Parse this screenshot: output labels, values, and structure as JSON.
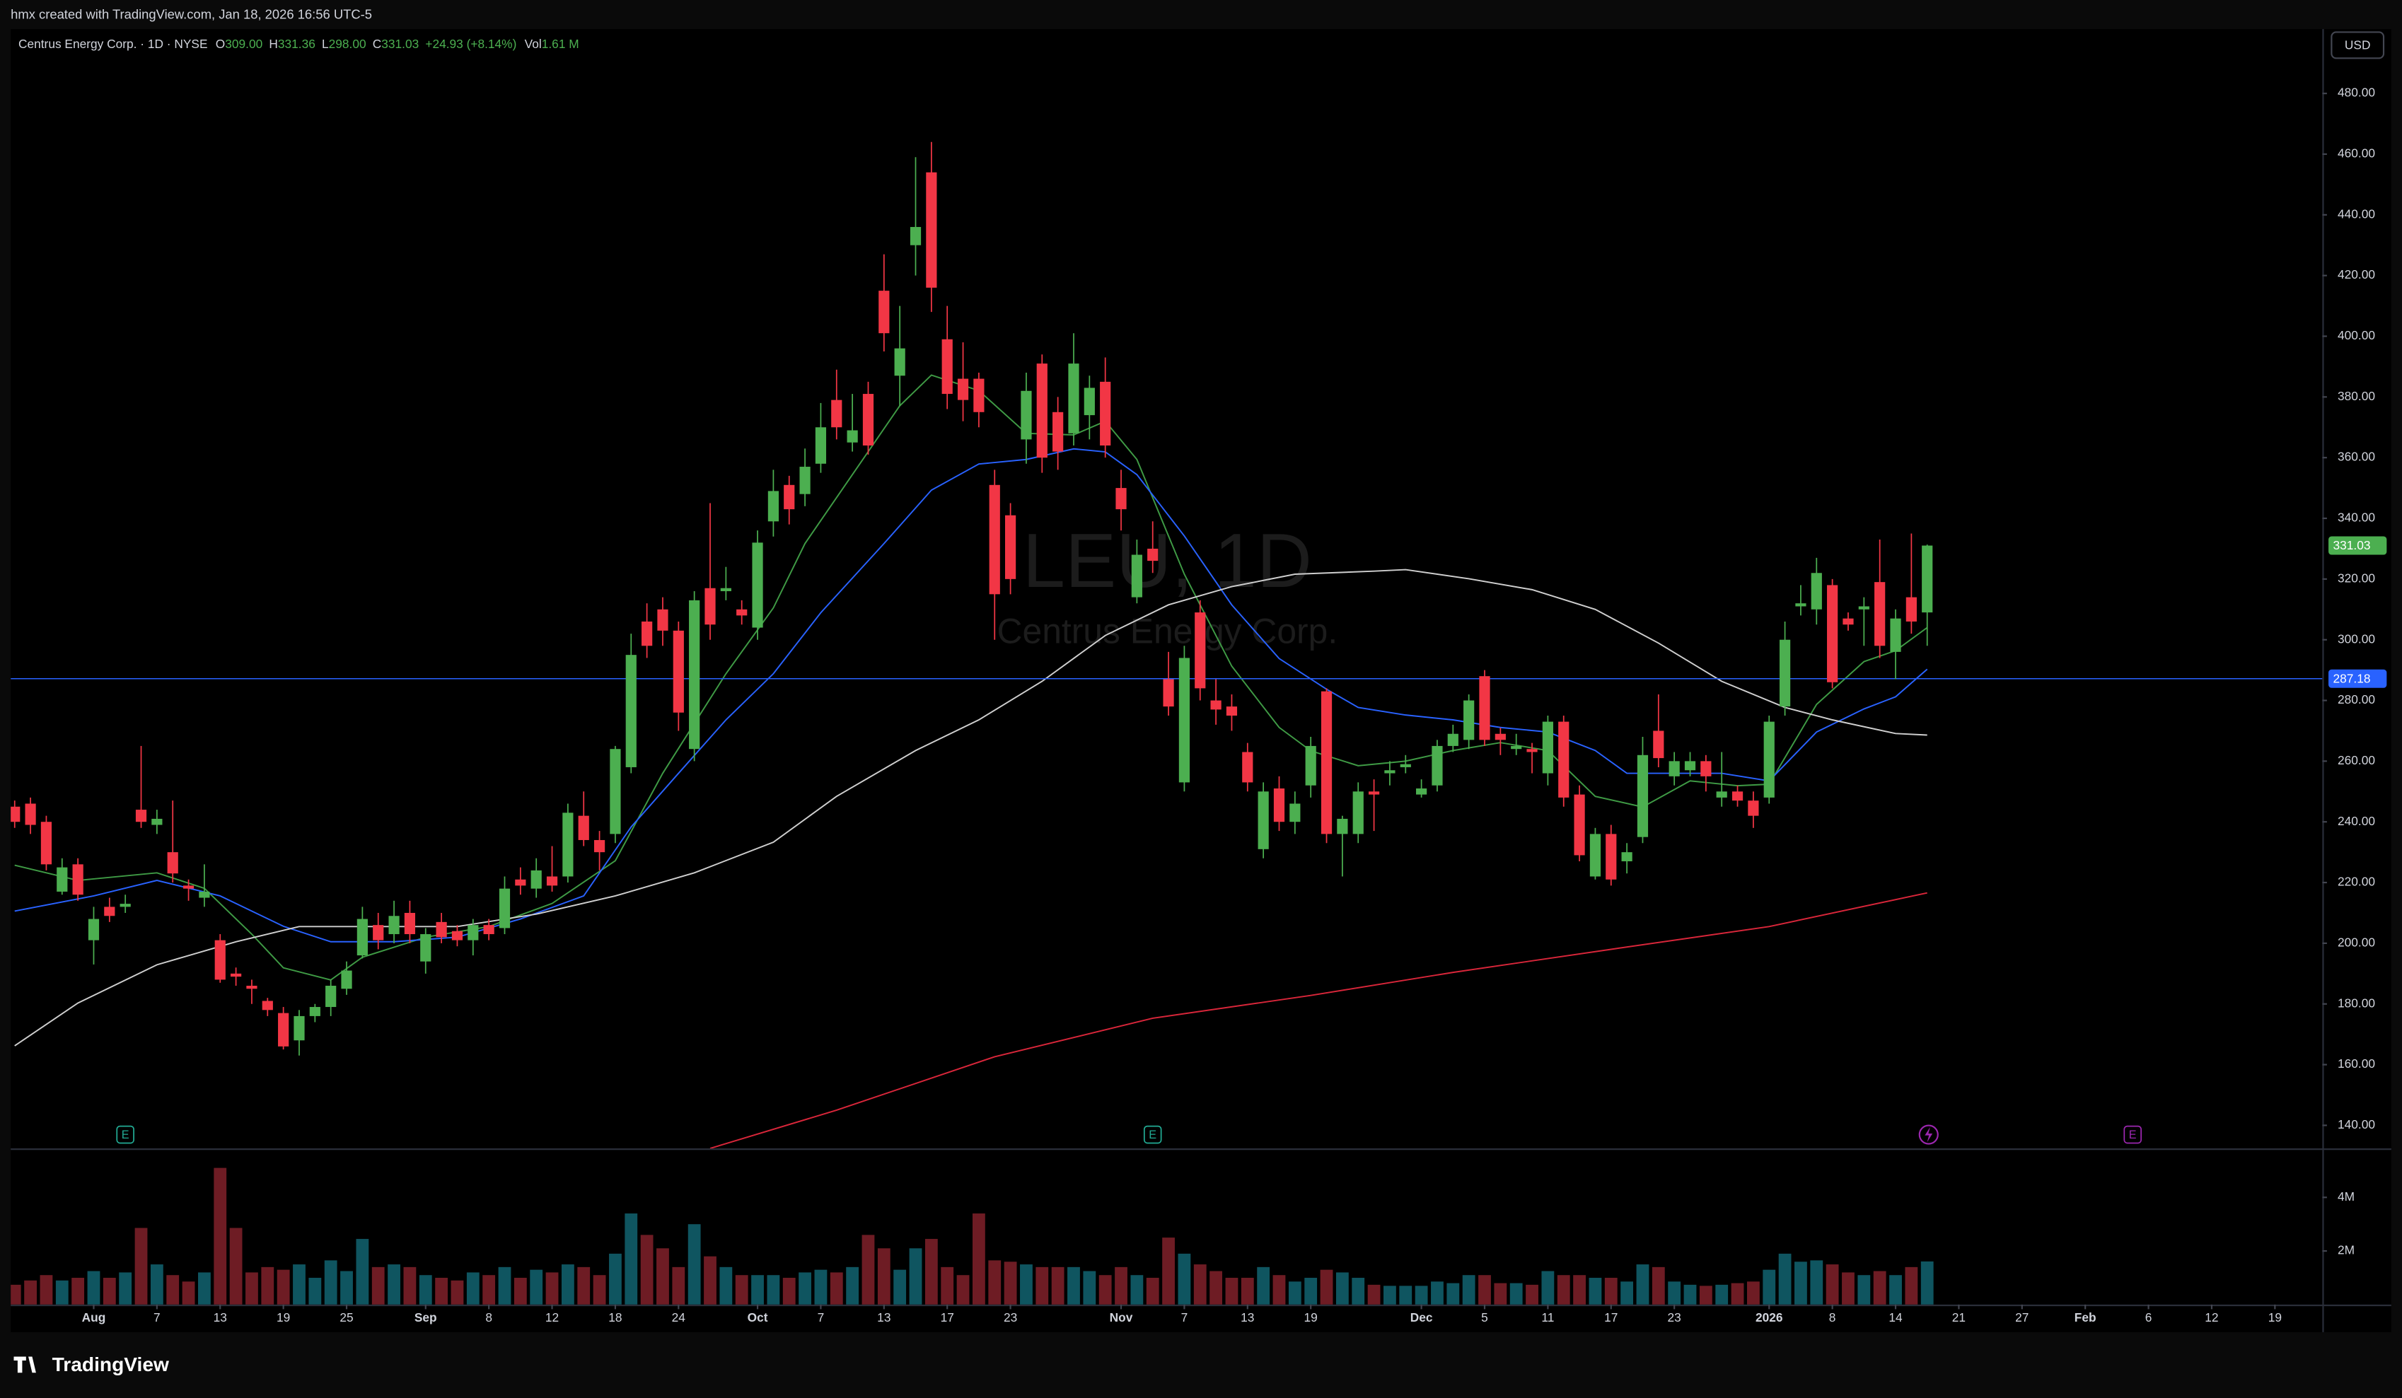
{
  "attribution": "hmx created with TradingView.com, Jan 18, 2026 16:56 UTC-5",
  "header": {
    "symbol": "Centrus Energy Corp. · 1D · NYSE",
    "ohlc": [
      {
        "label": "O",
        "value": "309.00"
      },
      {
        "label": "H",
        "value": "331.36"
      },
      {
        "label": "L",
        "value": "298.00"
      },
      {
        "label": "C",
        "value": "331.03"
      }
    ],
    "change": "+24.93 (+8.14%)",
    "volume": {
      "label": "Vol",
      "value": "1.61 M"
    }
  },
  "watermark": {
    "title": "LEU, 1D",
    "subtitle": "Centrus Energy Corp."
  },
  "currency": "USD",
  "brand": "TradingView",
  "chart_data": {
    "type": "candlestick",
    "x": [
      0,
      1,
      2,
      3,
      4,
      5,
      6,
      7,
      8,
      9,
      10,
      11,
      12,
      13,
      14,
      15,
      16,
      17,
      18,
      19,
      20,
      21,
      22,
      23,
      24,
      25,
      26,
      27,
      28,
      29,
      30,
      31,
      32,
      33,
      34,
      35,
      36,
      37,
      38,
      39,
      40,
      41,
      42,
      43,
      44,
      45,
      46,
      47,
      48,
      49,
      50,
      51,
      52,
      53,
      54,
      55,
      56,
      57,
      58,
      59,
      60,
      61,
      62,
      63,
      64,
      65,
      66,
      67,
      68,
      69,
      70,
      71,
      72,
      73,
      74,
      75,
      76,
      77,
      78,
      79,
      80,
      81,
      82,
      83,
      84,
      85,
      86,
      87,
      88,
      89,
      90,
      91,
      92,
      93,
      94,
      95,
      96,
      97,
      98,
      99,
      100,
      101,
      102,
      103,
      104,
      105,
      106,
      107,
      108,
      109,
      110,
      111,
      112,
      113,
      114,
      115,
      116,
      117,
      118,
      119,
      120,
      121
    ],
    "open": [
      245,
      246,
      240,
      217,
      226,
      201,
      212,
      212,
      244,
      239,
      230,
      219,
      215,
      201,
      190,
      186,
      181,
      177,
      168,
      176,
      179,
      185,
      196,
      206,
      203,
      210,
      194,
      207,
      204,
      201,
      206,
      205,
      221,
      218,
      222,
      222,
      242,
      234,
      236,
      258,
      306,
      310,
      303,
      264,
      317,
      316,
      310,
      304,
      339,
      351,
      348,
      358,
      379,
      365,
      381,
      415,
      387,
      430,
      454,
      399,
      386,
      386,
      351,
      341,
      366,
      391,
      375,
      368,
      374,
      385,
      350,
      314,
      330,
      287,
      253,
      309,
      280,
      278,
      263,
      231,
      251,
      240,
      252,
      283,
      236,
      236,
      250,
      256,
      258,
      249,
      252,
      265,
      267,
      288,
      269,
      264,
      264,
      256,
      273,
      249,
      222,
      236,
      227,
      235,
      270,
      255,
      257,
      260,
      248,
      250,
      247,
      248,
      278,
      311,
      310,
      318,
      307,
      310,
      319,
      296,
      314,
      309
    ],
    "high": [
      247,
      248,
      242,
      228,
      228,
      212,
      215,
      216,
      265,
      244,
      247,
      221,
      226,
      203,
      192,
      188,
      182,
      179,
      178,
      180,
      188,
      194,
      212,
      210,
      214,
      214,
      205,
      210,
      206,
      208,
      208,
      222,
      225,
      228,
      232,
      246,
      250,
      237,
      265,
      302,
      312,
      314,
      306,
      316,
      345,
      324,
      313,
      336,
      356,
      354,
      363,
      378,
      389,
      381,
      385,
      427,
      410,
      459,
      464,
      410,
      398,
      388,
      356,
      345,
      388,
      394,
      380,
      401,
      387,
      393,
      356,
      333,
      339,
      296,
      298,
      313,
      287,
      282,
      266,
      253,
      255,
      250,
      268,
      284,
      242,
      253,
      254,
      260,
      262,
      254,
      267,
      272,
      282,
      290,
      271,
      269,
      266,
      275,
      275,
      252,
      238,
      239,
      233,
      268,
      282,
      263,
      263,
      262,
      263,
      252,
      250,
      275,
      306,
      318,
      327,
      320,
      309,
      314,
      333,
      310,
      335,
      331.36
    ],
    "low": [
      238,
      236,
      224,
      216,
      214,
      193,
      207,
      210,
      238,
      236,
      220,
      214,
      212,
      187,
      186,
      180,
      176,
      165,
      163,
      174,
      176,
      183,
      195,
      198,
      200,
      200,
      190,
      200,
      199,
      196,
      201,
      203,
      216,
      215,
      217,
      220,
      232,
      224,
      233,
      256,
      294,
      298,
      270,
      260,
      300,
      313,
      305,
      300,
      334,
      338,
      344,
      355,
      366,
      362,
      361,
      395,
      377,
      420,
      408,
      376,
      372,
      370,
      300,
      315,
      358,
      355,
      356,
      364,
      366,
      360,
      336,
      312,
      322,
      275,
      250,
      280,
      272,
      270,
      250,
      228,
      237,
      236,
      248,
      233,
      222,
      233,
      237,
      252,
      256,
      248,
      250,
      263,
      264,
      265,
      262,
      262,
      256,
      252,
      245,
      227,
      221,
      219,
      223,
      233,
      258,
      252,
      255,
      250,
      245,
      245,
      238,
      246,
      275,
      308,
      305,
      284,
      303,
      298,
      294,
      287,
      302,
      298
    ],
    "close": [
      240,
      239,
      226,
      225,
      216,
      208,
      209,
      213,
      240,
      241,
      223,
      218,
      217,
      188,
      189,
      185,
      178,
      166,
      176,
      179,
      186,
      191,
      208,
      201,
      209,
      203,
      203,
      202,
      201,
      206,
      203,
      218,
      219,
      224,
      219,
      243,
      234,
      230,
      264,
      295,
      298,
      303,
      276,
      313,
      305,
      317,
      308,
      332,
      349,
      343,
      357,
      370,
      370,
      369,
      364,
      401,
      396,
      436,
      416,
      381,
      379,
      375,
      315,
      320,
      382,
      360,
      362,
      391,
      383,
      364,
      343,
      328,
      326,
      278,
      294,
      284,
      277,
      275,
      253,
      250,
      240,
      246,
      265,
      236,
      241,
      250,
      249,
      257,
      259,
      251,
      265,
      269,
      280,
      267,
      267,
      265,
      263,
      273,
      248,
      229,
      236,
      221,
      230,
      262,
      261,
      260,
      260,
      255,
      250,
      247,
      242,
      273,
      300,
      312,
      322,
      286,
      305,
      311,
      298,
      307,
      306,
      331.03
    ],
    "volume": [
      0.74,
      0.9,
      1.1,
      0.9,
      1.0,
      1.25,
      1.0,
      1.2,
      2.86,
      1.5,
      1.1,
      0.86,
      1.2,
      5.1,
      2.86,
      1.2,
      1.4,
      1.3,
      1.5,
      1.0,
      1.65,
      1.25,
      2.45,
      1.4,
      1.5,
      1.4,
      1.1,
      1.0,
      0.9,
      1.2,
      1.1,
      1.4,
      1.0,
      1.3,
      1.2,
      1.5,
      1.4,
      1.1,
      1.9,
      3.4,
      2.6,
      2.1,
      1.4,
      3.0,
      1.8,
      1.4,
      1.1,
      1.1,
      1.1,
      1.0,
      1.2,
      1.3,
      1.2,
      1.4,
      2.6,
      2.1,
      1.3,
      2.1,
      2.45,
      1.4,
      1.1,
      3.4,
      1.65,
      1.6,
      1.5,
      1.4,
      1.4,
      1.4,
      1.25,
      1.1,
      1.4,
      1.1,
      1.0,
      2.5,
      1.9,
      1.5,
      1.25,
      1.0,
      1.0,
      1.4,
      1.1,
      0.86,
      1.0,
      1.3,
      1.2,
      1.0,
      0.74,
      0.7,
      0.7,
      0.7,
      0.86,
      0.8,
      1.1,
      1.1,
      0.8,
      0.8,
      0.74,
      1.25,
      1.1,
      1.1,
      1.0,
      1.0,
      0.86,
      1.5,
      1.4,
      0.86,
      0.74,
      0.7,
      0.74,
      0.8,
      0.86,
      1.3,
      1.9,
      1.6,
      1.65,
      1.5,
      1.2,
      1.1,
      1.25,
      1.1,
      1.4,
      1.61
    ],
    "up_color": "#4caf50",
    "down_color": "#f23645",
    "volume_up_color": "#0f5560",
    "volume_down_color": "#6e1c24",
    "moving_averages": [
      {
        "color": "#3f9b45",
        "x": [
          0,
          4,
          9,
          12,
          15,
          17,
          20,
          22,
          26,
          30,
          34,
          38,
          41,
          45,
          48,
          50,
          53,
          56,
          58,
          61,
          64,
          67,
          69,
          71,
          74,
          77,
          80,
          82,
          85,
          88,
          91,
          94,
          97,
          100,
          103,
          106,
          109,
          111,
          114,
          117,
          119,
          121
        ],
        "values": [
          225.7,
          220.7,
          223.2,
          218.1,
          203.0,
          191.9,
          187.9,
          195.4,
          202.0,
          205.5,
          213.1,
          227.2,
          256.0,
          288.8,
          310.5,
          331.7,
          354.4,
          377.1,
          387.2,
          382.1,
          368.0,
          367.5,
          372.0,
          359.4,
          321.6,
          291.3,
          271.1,
          263.4,
          258.5,
          260.0,
          263.5,
          266.1,
          263.5,
          248.4,
          244.9,
          253.5,
          251.9,
          252.4,
          278.7,
          292.8,
          296.4,
          304.0
        ]
      },
      {
        "color": "#2962ff",
        "x": [
          0,
          5,
          9,
          13,
          17,
          20,
          24,
          28,
          32,
          36,
          39,
          42,
          45,
          48,
          51,
          55,
          58,
          61,
          64,
          67,
          69,
          71,
          74,
          77,
          80,
          83,
          85,
          88,
          91,
          94,
          97,
          100,
          102,
          105,
          108,
          111,
          114,
          117,
          119,
          121
        ],
        "values": [
          210.6,
          215.6,
          220.7,
          215.6,
          205.6,
          200.5,
          200.5,
          202.0,
          208.0,
          215.6,
          238.3,
          256.0,
          273.6,
          288.8,
          308.9,
          331.7,
          349.3,
          357.9,
          359.4,
          362.9,
          361.9,
          354.4,
          334.2,
          311.5,
          293.8,
          283.7,
          277.7,
          275.2,
          273.6,
          271.1,
          269.6,
          263.5,
          256.0,
          256.0,
          256.0,
          253.5,
          269.6,
          277.2,
          281.2,
          290.3
        ]
      },
      {
        "color": "#cfcfcf",
        "x": [
          0,
          4,
          9,
          14,
          18,
          23,
          28,
          33,
          38,
          43,
          48,
          52,
          57,
          61,
          65,
          69,
          73,
          77,
          81,
          86,
          88,
          92,
          96,
          100,
          104,
          108,
          112,
          115,
          119,
          121
        ],
        "values": [
          166.2,
          180.3,
          192.9,
          200.5,
          205.5,
          205.5,
          205.5,
          209.6,
          215.6,
          223.2,
          233.3,
          248.4,
          263.5,
          273.6,
          286.3,
          301.4,
          311.5,
          317.5,
          321.6,
          322.6,
          323.1,
          320.1,
          316.5,
          310.0,
          298.9,
          286.3,
          277.7,
          273.6,
          269.1,
          268.6
        ]
      },
      {
        "color": "#d9263a",
        "x": [
          44,
          52,
          62,
          72,
          82,
          91,
          101,
          111,
          121
        ],
        "values": [
          132.4,
          145.0,
          162.6,
          175.3,
          182.8,
          190.4,
          198.0,
          205.5,
          216.6
        ]
      }
    ],
    "xlim": [
      -0.25,
      146
    ],
    "xticks": [
      {
        "value": 5,
        "label": "Aug"
      },
      {
        "value": 9,
        "label": "7"
      },
      {
        "value": 13,
        "label": "13"
      },
      {
        "value": 17,
        "label": "19"
      },
      {
        "value": 21,
        "label": "25"
      },
      {
        "value": 26,
        "label": "Sep"
      },
      {
        "value": 30,
        "label": "8"
      },
      {
        "value": 34,
        "label": "12"
      },
      {
        "value": 38,
        "label": "18"
      },
      {
        "value": 42,
        "label": "24"
      },
      {
        "value": 47,
        "label": "Oct"
      },
      {
        "value": 51,
        "label": "7"
      },
      {
        "value": 55,
        "label": "13"
      },
      {
        "value": 59,
        "label": "17"
      },
      {
        "value": 63,
        "label": "23"
      },
      {
        "value": 70,
        "label": "Nov"
      },
      {
        "value": 74,
        "label": "7"
      },
      {
        "value": 78,
        "label": "13"
      },
      {
        "value": 82,
        "label": "19"
      },
      {
        "value": 89,
        "label": "Dec"
      },
      {
        "value": 93,
        "label": "5"
      },
      {
        "value": 97,
        "label": "11"
      },
      {
        "value": 101,
        "label": "17"
      },
      {
        "value": 105,
        "label": "23"
      },
      {
        "value": 111,
        "label": "2026"
      },
      {
        "value": 115,
        "label": "8"
      },
      {
        "value": 119,
        "label": "14"
      },
      {
        "value": 123,
        "label": "21"
      },
      {
        "value": 127,
        "label": "27"
      },
      {
        "value": 131,
        "label": "Feb"
      },
      {
        "value": 135,
        "label": "6"
      },
      {
        "value": 139,
        "label": "12"
      },
      {
        "value": 143,
        "label": "19"
      }
    ],
    "ylim": [
      132.4,
      501.2
    ],
    "yticks": [
      {
        "value": 140,
        "label": "140.00"
      },
      {
        "value": 160,
        "label": "160.00"
      },
      {
        "value": 180,
        "label": "180.00"
      },
      {
        "value": 200,
        "label": "200.00"
      },
      {
        "value": 220,
        "label": "220.00"
      },
      {
        "value": 240,
        "label": "240.00"
      },
      {
        "value": 260,
        "label": "260.00"
      },
      {
        "value": 280,
        "label": "280.00"
      },
      {
        "value": 300,
        "label": "300.00"
      },
      {
        "value": 320,
        "label": "320.00"
      },
      {
        "value": 340,
        "label": "340.00"
      },
      {
        "value": 360,
        "label": "360.00"
      },
      {
        "value": 380,
        "label": "380.00"
      },
      {
        "value": 400,
        "label": "400.00"
      },
      {
        "value": 420,
        "label": "420.00"
      },
      {
        "value": 440,
        "label": "440.00"
      },
      {
        "value": 460,
        "label": "460.00"
      },
      {
        "value": 480,
        "label": "480.00"
      }
    ],
    "volume_ylim": [
      0,
      5.77
    ],
    "volume_yticks": [
      {
        "value": 2,
        "label": "2M"
      },
      {
        "value": 4,
        "label": "4M"
      }
    ],
    "last_price": {
      "value": 331.03,
      "label": "331.03",
      "color": "#4caf50"
    },
    "price_line": {
      "value": 287.18,
      "label": "287.18",
      "color": "#2962ff"
    },
    "events": [
      {
        "x": 7,
        "label": "E",
        "color": "#22ab94"
      },
      {
        "x": 72,
        "label": "E",
        "color": "#22ab94"
      },
      {
        "x": 134,
        "label": "E",
        "color": "#9c27b0"
      }
    ]
  }
}
